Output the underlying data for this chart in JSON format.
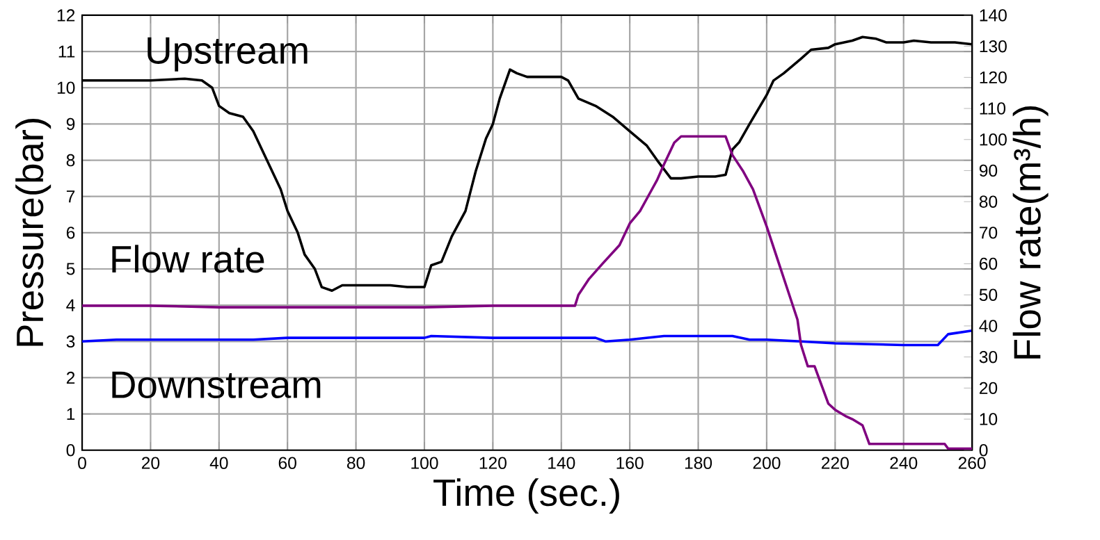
{
  "chart_data": {
    "type": "line",
    "xlabel": "Time (sec.)",
    "ylabel": "Pressure(bar)",
    "y2label": "Flow rate(m³/h)",
    "xlim": [
      0,
      260
    ],
    "xticks": [
      0,
      20,
      40,
      60,
      80,
      100,
      120,
      140,
      160,
      180,
      200,
      220,
      240,
      260
    ],
    "ylim": [
      0,
      12
    ],
    "yticks": [
      0,
      1,
      2,
      3,
      4,
      5,
      6,
      7,
      8,
      9,
      10,
      11,
      12
    ],
    "y2lim": [
      0,
      140
    ],
    "y2ticks": [
      0,
      10,
      20,
      30,
      40,
      50,
      60,
      70,
      80,
      90,
      100,
      110,
      120,
      130,
      140
    ],
    "grid": true,
    "legend": false,
    "marker": "none",
    "line_style": "solid",
    "series": [
      {
        "name": "Upstream",
        "color": "#000000",
        "axis": "y",
        "x": [
          0,
          10,
          20,
          30,
          35,
          38,
          40,
          43,
          47,
          50,
          55,
          58,
          60,
          63,
          65,
          68,
          70,
          73,
          76,
          80,
          90,
          95,
          100,
          102,
          105,
          108,
          112,
          115,
          118,
          120,
          122,
          125,
          127,
          130,
          135,
          140,
          142,
          145,
          150,
          155,
          160,
          165,
          168,
          172,
          175,
          180,
          185,
          188,
          190,
          192,
          195,
          200,
          202,
          205,
          210,
          213,
          218,
          220,
          225,
          228,
          232,
          235,
          240,
          243,
          248,
          255,
          260
        ],
        "values": [
          10.2,
          10.2,
          10.2,
          10.25,
          10.2,
          10.0,
          9.5,
          9.3,
          9.2,
          8.8,
          7.8,
          7.2,
          6.6,
          6.0,
          5.4,
          5.0,
          4.5,
          4.4,
          4.55,
          4.55,
          4.55,
          4.5,
          4.5,
          5.1,
          5.2,
          5.9,
          6.6,
          7.7,
          8.6,
          9.0,
          9.7,
          10.5,
          10.4,
          10.3,
          10.3,
          10.3,
          10.2,
          9.7,
          9.5,
          9.2,
          8.8,
          8.4,
          8.0,
          7.5,
          7.5,
          7.55,
          7.55,
          7.6,
          8.3,
          8.5,
          9.0,
          9.8,
          10.2,
          10.4,
          10.8,
          11.05,
          11.1,
          11.2,
          11.3,
          11.4,
          11.35,
          11.25,
          11.25,
          11.3,
          11.25,
          11.25,
          11.2
        ]
      },
      {
        "name": "Flow rate",
        "color": "#800080",
        "axis": "y2",
        "x": [
          0,
          20,
          40,
          60,
          80,
          100,
          120,
          144,
          145,
          148,
          152,
          157,
          160,
          163,
          166,
          168,
          170,
          173,
          175,
          180,
          185,
          188,
          190,
          193,
          196,
          200,
          203,
          206,
          209,
          210,
          212,
          214,
          216,
          218,
          220,
          223,
          225,
          228,
          230,
          240,
          252,
          253,
          260
        ],
        "values": [
          46.5,
          46.5,
          46,
          46,
          46,
          46,
          46.5,
          46.5,
          50,
          55,
          60,
          66,
          73,
          77,
          83,
          87,
          92,
          99,
          101,
          101,
          101,
          101,
          95,
          90,
          84,
          72,
          62,
          52,
          42,
          34,
          27,
          27,
          21,
          15,
          13,
          11,
          10,
          8,
          2,
          2,
          2,
          0.5,
          0.5
        ]
      },
      {
        "name": "Downstream",
        "color": "#0000ff",
        "axis": "y",
        "x": [
          0,
          10,
          30,
          50,
          60,
          80,
          100,
          102,
          120,
          140,
          150,
          153,
          160,
          170,
          190,
          195,
          200,
          210,
          220,
          240,
          250,
          253,
          260
        ],
        "values": [
          3.0,
          3.05,
          3.05,
          3.05,
          3.1,
          3.1,
          3.1,
          3.15,
          3.1,
          3.1,
          3.1,
          3.0,
          3.05,
          3.15,
          3.15,
          3.05,
          3.05,
          3.0,
          2.95,
          2.9,
          2.9,
          3.2,
          3.3
        ]
      }
    ]
  }
}
